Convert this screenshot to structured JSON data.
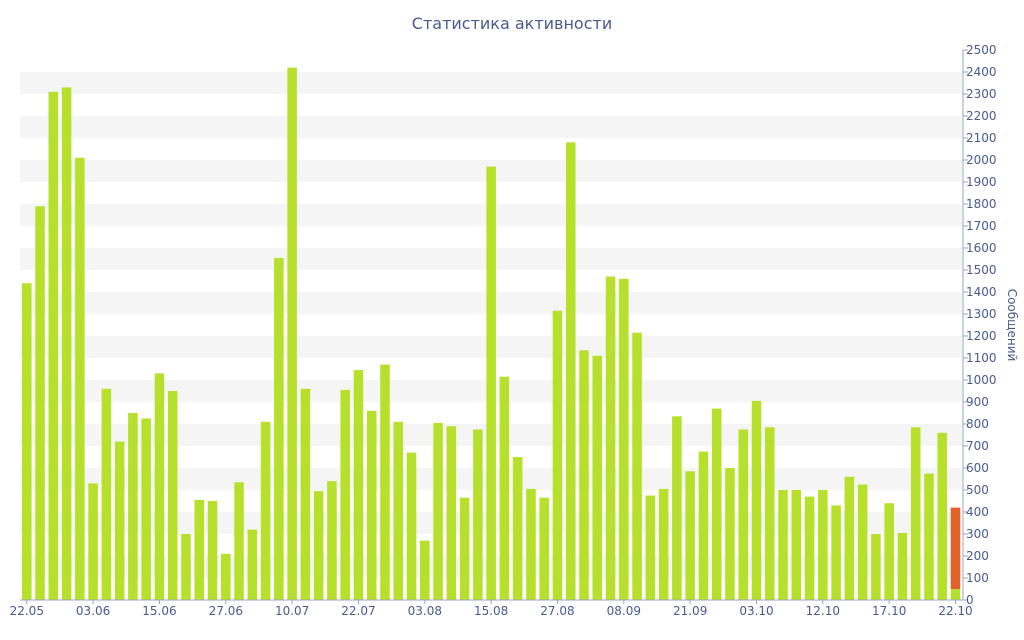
{
  "chart_data": {
    "type": "bar",
    "title": "Статистика активности",
    "ylabel": "Сообщений",
    "xlabel": "",
    "ylim": [
      0,
      2500
    ],
    "yticks": [
      0,
      100,
      200,
      300,
      400,
      500,
      600,
      700,
      800,
      900,
      1000,
      1100,
      1200,
      1300,
      1400,
      1500,
      1600,
      1700,
      1800,
      1900,
      2000,
      2100,
      2200,
      2300,
      2400,
      2500
    ],
    "x_tick_labels": [
      "22.05",
      "03.06",
      "15.06",
      "27.06",
      "10.07",
      "22.07",
      "03.08",
      "15.08",
      "27.08",
      "08.09",
      "21.09",
      "03.10",
      "12.10",
      "17.10",
      "22.10"
    ],
    "x_tick_bar_index": [
      0,
      5,
      10,
      15,
      20,
      25,
      30,
      35,
      40,
      45,
      50,
      55,
      60,
      65,
      70
    ],
    "grid": true,
    "legend": "none",
    "colors": {
      "bar": "#b6e02c",
      "current": "#e0622a",
      "stripe": "#f5f5f5",
      "text": "#4a5a8f"
    },
    "values": [
      1440,
      1790,
      2310,
      2330,
      2010,
      530,
      960,
      720,
      850,
      825,
      1030,
      950,
      300,
      455,
      450,
      210,
      535,
      320,
      810,
      1555,
      2420,
      960,
      495,
      540,
      955,
      1045,
      860,
      1070,
      810,
      670,
      270,
      805,
      790,
      465,
      775,
      1970,
      1015,
      650,
      505,
      465,
      1315,
      2080,
      1135,
      1110,
      1470,
      1460,
      1215,
      475,
      505,
      835,
      585,
      675,
      870,
      600,
      775,
      905,
      785,
      500,
      500,
      470,
      500,
      430,
      560,
      525,
      300,
      440,
      305,
      785,
      575,
      760,
      420
    ],
    "current_index": 70,
    "current_base": 50
  }
}
